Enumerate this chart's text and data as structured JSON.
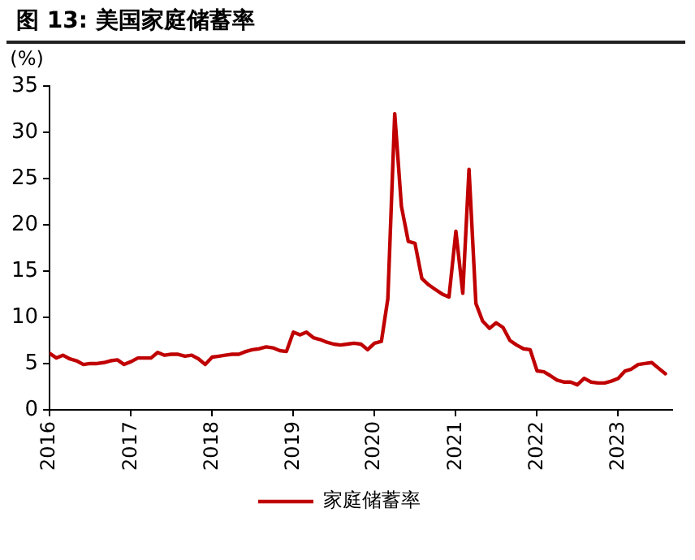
{
  "chart_data": {
    "type": "line",
    "title": "图 13: 美国家庭储蓄率",
    "ylabel": "(%)",
    "x": [
      "2016-01",
      "2016-02",
      "2016-03",
      "2016-04",
      "2016-05",
      "2016-06",
      "2016-07",
      "2016-08",
      "2016-09",
      "2016-10",
      "2016-11",
      "2016-12",
      "2017-01",
      "2017-02",
      "2017-03",
      "2017-04",
      "2017-05",
      "2017-06",
      "2017-07",
      "2017-08",
      "2017-09",
      "2017-10",
      "2017-11",
      "2017-12",
      "2018-01",
      "2018-02",
      "2018-03",
      "2018-04",
      "2018-05",
      "2018-06",
      "2018-07",
      "2018-08",
      "2018-09",
      "2018-10",
      "2018-11",
      "2018-12",
      "2019-01",
      "2019-02",
      "2019-03",
      "2019-04",
      "2019-05",
      "2019-06",
      "2019-07",
      "2019-08",
      "2019-09",
      "2019-10",
      "2019-11",
      "2019-12",
      "2020-01",
      "2020-02",
      "2020-03",
      "2020-04",
      "2020-05",
      "2020-06",
      "2020-07",
      "2020-08",
      "2020-09",
      "2020-10",
      "2020-11",
      "2020-12",
      "2021-01",
      "2021-02",
      "2021-03",
      "2021-04",
      "2021-05",
      "2021-06",
      "2021-07",
      "2021-08",
      "2021-09",
      "2021-10",
      "2021-11",
      "2021-12",
      "2022-01",
      "2022-02",
      "2022-03",
      "2022-04",
      "2022-05",
      "2022-06",
      "2022-07",
      "2022-08",
      "2022-09",
      "2022-10",
      "2022-11",
      "2022-12",
      "2023-01",
      "2023-02",
      "2023-03",
      "2023-04",
      "2023-05",
      "2023-06",
      "2023-07",
      "2023-08"
    ],
    "series": [
      {
        "name": "家庭储蓄率",
        "color": "#c00000",
        "values": [
          6.1,
          5.6,
          5.9,
          5.5,
          5.3,
          4.9,
          5.0,
          5.0,
          5.1,
          5.3,
          5.4,
          4.9,
          5.2,
          5.6,
          5.6,
          5.6,
          6.2,
          5.9,
          6.0,
          6.0,
          5.8,
          5.9,
          5.5,
          4.9,
          5.7,
          5.8,
          5.9,
          6.0,
          6.0,
          6.3,
          6.5,
          6.6,
          6.8,
          6.7,
          6.4,
          6.3,
          8.4,
          8.1,
          8.4,
          7.8,
          7.6,
          7.3,
          7.1,
          7.0,
          7.1,
          7.2,
          7.1,
          6.5,
          7.2,
          7.4,
          12.0,
          32.0,
          22.0,
          18.2,
          18.0,
          14.2,
          13.5,
          13.0,
          12.5,
          12.2,
          19.3,
          12.6,
          26.0,
          11.5,
          9.6,
          8.8,
          9.4,
          8.9,
          7.5,
          7.0,
          6.6,
          6.5,
          4.2,
          4.1,
          3.7,
          3.2,
          3.0,
          3.0,
          2.7,
          3.4,
          3.0,
          2.9,
          2.9,
          3.1,
          3.4,
          4.2,
          4.4,
          4.9,
          5.0,
          5.1,
          4.5,
          3.9
        ]
      }
    ],
    "xlim": [
      "2016-01",
      "2023-09"
    ],
    "xticks": [
      "2016",
      "2017",
      "2018",
      "2019",
      "2020",
      "2021",
      "2022",
      "2023"
    ],
    "ylim": [
      0,
      35
    ],
    "yticks": [
      0,
      5,
      10,
      15,
      20,
      25,
      30,
      35
    ],
    "grid": false,
    "legend": "bottom"
  }
}
